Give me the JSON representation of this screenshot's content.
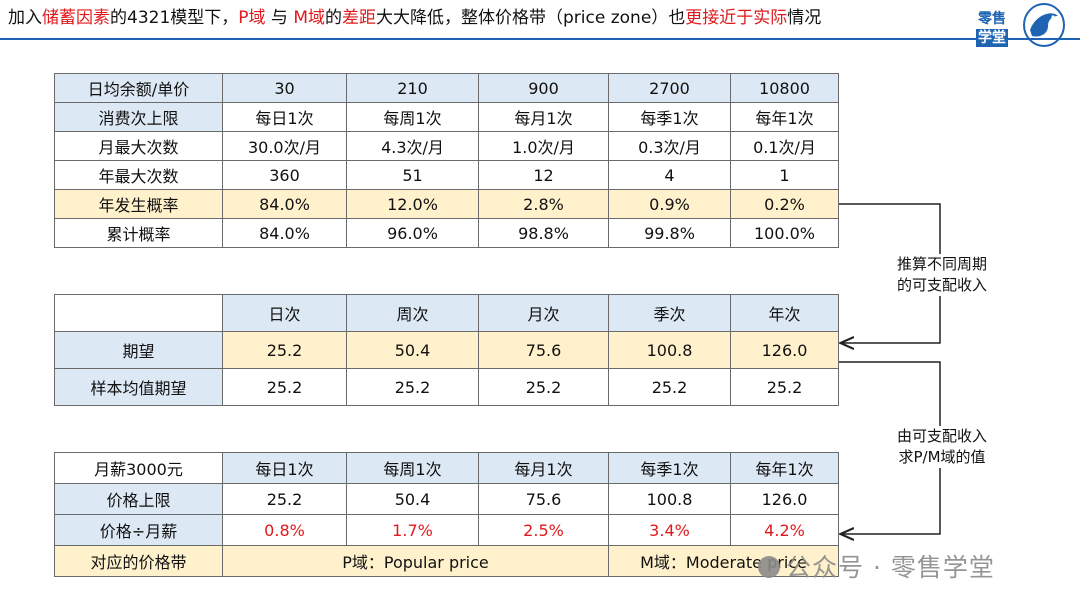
{
  "header": {
    "title_parts": [
      {
        "text": "加入",
        "hl": false
      },
      {
        "text": "储蓄因素",
        "hl": true
      },
      {
        "text": "的4321模型下，",
        "hl": false
      },
      {
        "text": "P域",
        "hl": true
      },
      {
        "text": " 与 ",
        "hl": false
      },
      {
        "text": "M域",
        "hl": true
      },
      {
        "text": "的",
        "hl": false
      },
      {
        "text": "差距",
        "hl": true
      },
      {
        "text": "大大降低，整体价格带（price zone）也",
        "hl": false
      },
      {
        "text": "更接近于实际",
        "hl": true
      },
      {
        "text": "情况",
        "hl": false
      }
    ],
    "logo_line1": "零售",
    "logo_line2": "学堂"
  },
  "table1": {
    "header": [
      "日均余额/单价",
      "30",
      "210",
      "900",
      "2700",
      "10800"
    ],
    "rows": [
      [
        "消费次上限",
        "每日1次",
        "每周1次",
        "每月1次",
        "每季1次",
        "每年1次"
      ],
      [
        "月最大次数",
        "30.0次/月",
        "4.3次/月",
        "1.0次/月",
        "0.3次/月",
        "0.1次/月"
      ],
      [
        "年最大次数",
        "360",
        "51",
        "12",
        "4",
        "1"
      ],
      [
        "年发生概率",
        "84.0%",
        "12.0%",
        "2.8%",
        "0.9%",
        "0.2%"
      ],
      [
        "累计概率",
        "84.0%",
        "96.0%",
        "98.8%",
        "99.8%",
        "100.0%"
      ]
    ]
  },
  "table2": {
    "header": [
      "",
      "日次",
      "周次",
      "月次",
      "季次",
      "年次"
    ],
    "rows": [
      [
        "期望",
        "25.2",
        "50.4",
        "75.6",
        "100.8",
        "126.0"
      ],
      [
        "样本均值期望",
        "25.2",
        "25.2",
        "25.2",
        "25.2",
        "25.2"
      ]
    ]
  },
  "table3": {
    "header": [
      "月薪3000元",
      "每日1次",
      "每周1次",
      "每月1次",
      "每季1次",
      "每年1次"
    ],
    "rows": [
      [
        "价格上限",
        "25.2",
        "50.4",
        "75.6",
        "100.8",
        "126.0"
      ],
      [
        "价格÷月薪",
        "0.8%",
        "1.7%",
        "2.5%",
        "3.4%",
        "4.2%"
      ]
    ],
    "zone_row": {
      "label": "对应的价格带",
      "p_zone": "P域：Popular price",
      "m_zone": "M域：Moderate price"
    }
  },
  "notes": {
    "note1_line1": "推算不同周期",
    "note1_line2": "的可支配收入",
    "note2_line1": "由可支配收入",
    "note2_line2": "求P/M域的值"
  },
  "watermark": "公众号 · 零售学堂",
  "colors": {
    "accent_blue": "#1f64b3",
    "highlight_red": "#e0191c",
    "header_fill": "#dde8f5",
    "highlight_fill": "#fff1cc"
  }
}
